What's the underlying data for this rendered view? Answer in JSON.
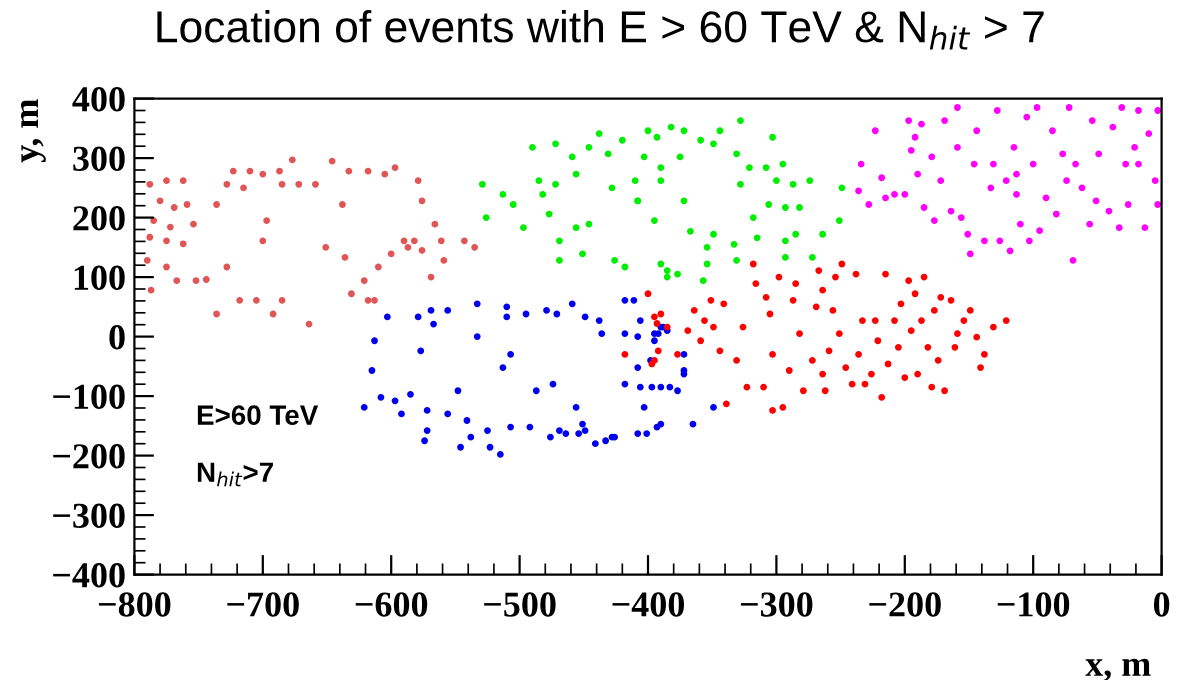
{
  "chart_data": {
    "type": "scatter",
    "title": "Location of events with E > 60 TeV & N$_{hit}$ > 7",
    "xlabel": "x, m",
    "ylabel": "y, m",
    "annotations": [
      "E>60 TeV",
      "N$_{hit}$>7"
    ],
    "xlim": [
      -800,
      0
    ],
    "ylim": [
      -400,
      400
    ],
    "xticks": [
      -800,
      -700,
      -600,
      -500,
      -400,
      -300,
      -200,
      -100,
      0
    ],
    "yticks": [
      -400,
      -300,
      -200,
      -100,
      0,
      100,
      200,
      300,
      400
    ],
    "grid": false,
    "legend": false,
    "marker": "circle",
    "series": [
      {
        "color": "#e05555",
        "x": [
          -788,
          -775,
          -762,
          -780,
          -769,
          -759,
          -785,
          -772,
          -754,
          -788,
          -775,
          -762,
          -790,
          -775,
          -767,
          -787,
          -752,
          -744,
          -736,
          -728,
          -723,
          -715,
          -710,
          -700,
          -687,
          -677,
          -685,
          -697,
          -700,
          -728,
          -736,
          -718,
          -705,
          -692,
          -685,
          -664,
          -672,
          -659,
          -646,
          -638,
          -633,
          -618,
          -605,
          -597,
          -579,
          -576,
          -651,
          -636,
          -631,
          -621,
          -610,
          -618,
          -613,
          -600,
          -587,
          -582,
          -576,
          -566,
          -561,
          -559,
          -569,
          -543,
          -535,
          -590
        ],
        "values": [
          256,
          262,
          262,
          228,
          217,
          222,
          195,
          184,
          189,
          167,
          161,
          156,
          128,
          117,
          94,
          78,
          94,
          96,
          222,
          256,
          278,
          250,
          278,
          273,
          278,
          297,
          256,
          195,
          161,
          117,
          38,
          61,
          61,
          38,
          61,
          21,
          256,
          256,
          295,
          222,
          278,
          278,
          273,
          284,
          262,
          228,
          150,
          133,
          72,
          94,
          117,
          61,
          61,
          139,
          150,
          161,
          145,
          189,
          161,
          128,
          100,
          161,
          150,
          161
        ]
      },
      {
        "color": "#0000ee",
        "x": [
          -603,
          -613,
          -615,
          -621,
          -608,
          -597,
          -592,
          -585,
          -577,
          -579,
          -567,
          -569,
          -556,
          -572,
          -572,
          -574,
          -556,
          -548,
          -546,
          -541,
          -538,
          -533,
          -533,
          -525,
          -523,
          -515,
          -513,
          -507,
          -507,
          -510,
          -510,
          -495,
          -492,
          -487,
          -479,
          -476,
          -474,
          -469,
          -471,
          -464,
          -459,
          -456,
          -454,
          -451,
          -449,
          -449,
          -441,
          -438,
          -436,
          -433,
          -428,
          -426,
          -418,
          -418,
          -418,
          -408,
          -403,
          -408,
          -397,
          -392,
          -390,
          -411,
          -406,
          -408,
          -395,
          -395,
          -388,
          -385,
          -398,
          -406,
          -390,
          -383,
          -377,
          -372,
          -372,
          -372,
          -349,
          -365,
          -390,
          -393,
          -401
        ],
        "values": [
          33,
          -7,
          -57,
          -119,
          -102,
          -108,
          -130,
          -97,
          -24,
          33,
          21,
          44,
          44,
          -124,
          -158,
          -175,
          -130,
          -91,
          -186,
          -141,
          -169,
          55,
          0,
          -158,
          -186,
          -198,
          -52,
          -30,
          -152,
          50,
          33,
          38,
          -152,
          -91,
          44,
          -169,
          -80,
          -158,
          38,
          -163,
          55,
          -119,
          -163,
          -147,
          33,
          -158,
          -180,
          27,
          5,
          -175,
          -169,
          -169,
          61,
          5,
          -80,
          -163,
          -119,
          -52,
          -85,
          5,
          16,
          61,
          27,
          0,
          5,
          -7,
          16,
          10,
          -40,
          -85,
          -85,
          -85,
          -91,
          -57,
          -30,
          -63,
          -119,
          -147,
          -147,
          -152,
          -163
        ]
      },
      {
        "color": "#00ee00",
        "x": [
          -529,
          -526,
          -513,
          -505,
          -497,
          -490,
          -485,
          -482,
          -477,
          -472,
          -469,
          -469,
          -472,
          -459,
          -456,
          -456,
          -451,
          -446,
          -446,
          -438,
          -431,
          -428,
          -426,
          -420,
          -418,
          -410,
          -403,
          -408,
          -400,
          -390,
          -382,
          -385,
          -393,
          -372,
          -359,
          -349,
          -344,
          -328,
          -375,
          -390,
          -408,
          -395,
          -372,
          -331,
          -321,
          -328,
          -303,
          -308,
          -300,
          -295,
          -287,
          -274,
          -306,
          -293,
          -282,
          -318,
          -264,
          -251,
          -249,
          -349,
          -333,
          -315,
          -293,
          -285,
          -354,
          -367,
          -390,
          -377,
          -354,
          -357,
          -331,
          -293,
          -272,
          -385
        ],
        "values": [
          256,
          200,
          239,
          222,
          183,
          318,
          262,
          239,
          206,
          324,
          161,
          128,
          256,
          302,
          273,
          183,
          139,
          318,
          189,
          341,
          307,
          250,
          128,
          330,
          117,
          262,
          302,
          228,
          346,
          284,
          352,
          100,
          335,
          346,
          330,
          324,
          346,
          363,
          302,
          262,
          228,
          195,
          228,
          307,
          284,
          256,
          335,
          284,
          262,
          290,
          256,
          262,
          222,
          217,
          217,
          200,
          172,
          195,
          250,
          172,
          155,
          166,
          161,
          172,
          150,
          177,
          122,
          105,
          122,
          94,
          128,
          133,
          133,
          111
        ]
      },
      {
        "color": "#ff0000",
        "x": [
          -390,
          -393,
          -385,
          -395,
          -377,
          -369,
          -364,
          -359,
          -356,
          -351,
          -349,
          -341,
          -344,
          -339,
          -331,
          -326,
          -323,
          -318,
          -316,
          -310,
          -308,
          -305,
          -303,
          -303,
          -298,
          -295,
          -290,
          -287,
          -285,
          -282,
          -279,
          -272,
          -269,
          -267,
          -264,
          -264,
          -262,
          -259,
          -256,
          -254,
          -251,
          -249,
          -246,
          -241,
          -238,
          -236,
          -233,
          -231,
          -226,
          -223,
          -221,
          -218,
          -215,
          -213,
          -208,
          -205,
          -203,
          -200,
          -197,
          -195,
          -192,
          -190,
          -187,
          -185,
          -182,
          -179,
          -177,
          -174,
          -172,
          -169,
          -164,
          -161,
          -159,
          -154,
          -149,
          -144,
          -141,
          -138,
          -131,
          -121,
          -400,
          -395,
          -418,
          -392,
          -397
        ],
        "values": [
          38,
          22,
          16,
          -40,
          -30,
          10,
          44,
          -7,
          27,
          61,
          16,
          55,
          -24,
          -113,
          -40,
          16,
          -85,
          122,
          89,
          -85,
          66,
          38,
          -30,
          -124,
          100,
          -119,
          -57,
          61,
          89,
          5,
          -91,
          -40,
          50,
          111,
          78,
          -63,
          -91,
          -24,
          44,
          100,
          5,
          122,
          -52,
          -80,
          105,
          -30,
          27,
          -80,
          -63,
          27,
          -7,
          -102,
          105,
          -46,
          27,
          -18,
          55,
          -69,
          94,
          10,
          72,
          -63,
          27,
          100,
          -18,
          -85,
          44,
          -40,
          66,
          -91,
          61,
          -18,
          5,
          27,
          44,
          -1,
          -52,
          -30,
          16,
          27,
          72,
          33,
          -30,
          -24,
          -46
        ]
      },
      {
        "color": "#ff00ff",
        "x": [
          -234,
          -236,
          -228,
          -223,
          -218,
          -215,
          -208,
          -200,
          -197,
          -195,
          -190,
          -192,
          -187,
          -185,
          -179,
          -177,
          -172,
          -169,
          -164,
          -159,
          -159,
          -156,
          -151,
          -149,
          -146,
          -144,
          -138,
          -133,
          -131,
          -128,
          -126,
          -121,
          -118,
          -115,
          -113,
          -110,
          -105,
          -103,
          -100,
          -97,
          -95,
          -90,
          -85,
          -82,
          -77,
          -74,
          -72,
          -69,
          -67,
          -62,
          -56,
          -54,
          -49,
          -41,
          -38,
          -33,
          -31,
          -28,
          -26,
          -21,
          -18,
          -13,
          -10,
          -5,
          -3,
          -3,
          -18,
          -51,
          -113
        ],
        "values": [
          290,
          245,
          222,
          346,
          267,
          233,
          239,
          239,
          363,
          313,
          273,
          335,
          357,
          217,
          302,
          195,
          262,
          363,
          211,
          385,
          318,
          200,
          172,
          139,
          290,
          346,
          161,
          250,
          290,
          380,
          161,
          262,
          144,
          318,
          239,
          189,
          369,
          161,
          290,
          385,
          178,
          233,
          346,
          206,
          307,
          262,
          385,
          128,
          290,
          250,
          189,
          363,
          307,
          211,
          352,
          183,
          385,
          290,
          222,
          318,
          380,
          183,
          341,
          262,
          222,
          380,
          290,
          228,
          273
        ]
      }
    ]
  }
}
